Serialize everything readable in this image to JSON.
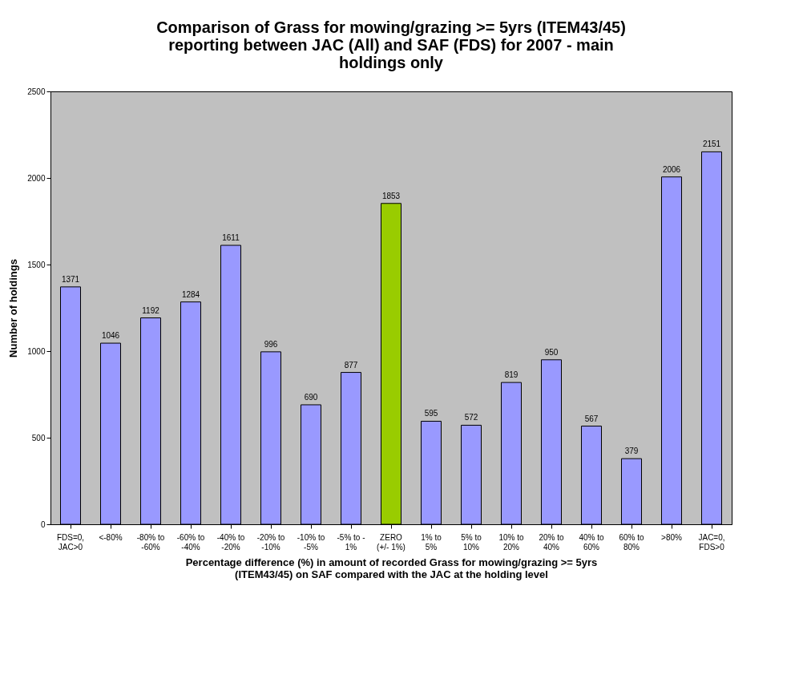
{
  "chart_data": {
    "type": "bar",
    "title": "Comparison of Grass for mowing/grazing >= 5yrs (ITEM43/45) reporting between JAC (All) and SAF (FDS) for 2007 - main holdings only",
    "xlabel": "Percentage difference (%) in amount of recorded Grass for mowing/grazing >= 5yrs (ITEM43/45) on SAF compared with the JAC at the holding level",
    "ylabel": "Number of holdings",
    "categories": [
      "FDS=0,\nJAC>0",
      "<-80%",
      "-80% to\n-60%",
      "-60% to\n-40%",
      "-40% to\n-20%",
      "-20% to\n-10%",
      "-10% to\n-5%",
      "-5% to -\n1%",
      "ZERO\n(+/- 1%)",
      "1% to\n5%",
      "5% to\n10%",
      "10% to\n20%",
      "20% to\n40%",
      "40% to\n60%",
      "60% to\n80%",
      ">80%",
      "JAC=0,\nFDS>0"
    ],
    "values": [
      1371,
      1046,
      1192,
      1284,
      1611,
      996,
      690,
      877,
      1853,
      595,
      572,
      819,
      950,
      567,
      379,
      2006,
      2151
    ],
    "colors": [
      "#9999ff",
      "#9999ff",
      "#9999ff",
      "#9999ff",
      "#9999ff",
      "#9999ff",
      "#9999ff",
      "#9999ff",
      "#99cc00",
      "#9999ff",
      "#9999ff",
      "#9999ff",
      "#9999ff",
      "#9999ff",
      "#9999ff",
      "#9999ff",
      "#9999ff"
    ],
    "ylim": [
      0,
      2500
    ],
    "yticks": [
      0,
      500,
      1000,
      1500,
      2000,
      2500
    ],
    "data_labels": true,
    "grid": false
  }
}
